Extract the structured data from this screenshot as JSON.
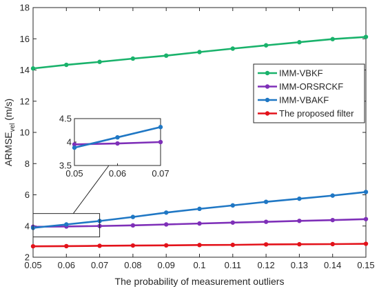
{
  "chart_data": {
    "type": "line",
    "xlabel": "The probability of measurement outliers",
    "ylabel_main": "ARMSE",
    "ylabel_sub": "vel",
    "ylabel_unit": " (m/s)",
    "xlim": [
      0.05,
      0.15
    ],
    "ylim": [
      2,
      18
    ],
    "x_ticks": [
      0.05,
      0.06,
      0.07,
      0.08,
      0.09,
      0.1,
      0.11,
      0.12,
      0.13,
      0.14,
      0.15
    ],
    "x_tick_labels": [
      "0.05",
      "0.06",
      "0.07",
      "0.08",
      "0.09",
      "0.1",
      "0.11",
      "0.12",
      "0.13",
      "0.14",
      "0.15"
    ],
    "y_ticks": [
      2,
      4,
      6,
      8,
      10,
      12,
      14,
      16,
      18
    ],
    "y_tick_labels": [
      "2",
      "4",
      "6",
      "8",
      "10",
      "12",
      "14",
      "16",
      "18"
    ],
    "grid": false,
    "legend_position": "right",
    "x": [
      0.05,
      0.06,
      0.07,
      0.08,
      0.09,
      0.1,
      0.11,
      0.12,
      0.13,
      0.14,
      0.15
    ],
    "series": [
      {
        "name": "IMM-VBKF",
        "color": "#19b26b",
        "values": [
          14.1,
          14.33,
          14.52,
          14.73,
          14.92,
          15.15,
          15.37,
          15.58,
          15.78,
          15.98,
          16.12
        ]
      },
      {
        "name": "IMM-ORSRCKF",
        "color": "#7e2fb8",
        "values": [
          3.95,
          3.97,
          4.0,
          4.04,
          4.1,
          4.16,
          4.22,
          4.27,
          4.33,
          4.38,
          4.44
        ]
      },
      {
        "name": "IMM-VBAKF",
        "color": "#1f77c4",
        "values": [
          3.88,
          4.1,
          4.32,
          4.58,
          4.86,
          5.1,
          5.32,
          5.55,
          5.75,
          5.95,
          6.18
        ]
      },
      {
        "name": "The proposed filter",
        "color": "#e3121a",
        "values": [
          2.7,
          2.71,
          2.73,
          2.75,
          2.76,
          2.78,
          2.79,
          2.82,
          2.83,
          2.84,
          2.86
        ]
      }
    ],
    "inset": {
      "xlim": [
        0.05,
        0.07
      ],
      "ylim": [
        3.5,
        4.5
      ],
      "x_ticks": [
        0.05,
        0.06,
        0.07
      ],
      "x_tick_labels": [
        "0.05",
        "0.06",
        "0.07"
      ],
      "y_ticks": [
        3.5,
        4,
        4.5
      ],
      "y_tick_labels": [
        "3.5",
        "4",
        "4.5"
      ],
      "zoom_box": {
        "x": [
          0.05,
          0.07
        ],
        "y": [
          3.3,
          4.8
        ]
      }
    }
  }
}
